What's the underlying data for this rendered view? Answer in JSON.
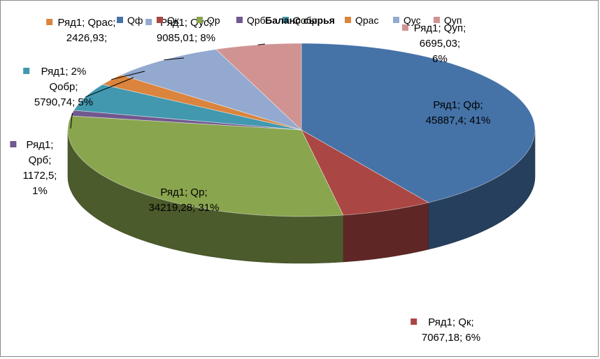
{
  "chart_data": {
    "type": "pie",
    "title": "Баланс сырья",
    "series_name": "Ряд1",
    "categories": [
      "Qф",
      "Qк",
      "Qр",
      "Qрб",
      "Qобр",
      "Qрас",
      "Qус",
      "Qуп"
    ],
    "values": [
      45887.4,
      7067.18,
      34219.28,
      1172.5,
      5790.74,
      2426.93,
      9085.01,
      6695.03
    ],
    "colors": [
      "#4572A7",
      "#AA4643",
      "#89A54E",
      "#71588F",
      "#4198AF",
      "#DB843D",
      "#93A9CF",
      "#D19392"
    ],
    "legend_position": "top",
    "data_labels": [
      [
        "Ряд1; Qф;",
        "45887,4; 41%"
      ],
      [
        "Ряд1; Qк;",
        "7067,18; 6%"
      ],
      [
        "Ряд1; Qр;",
        "34219,28; 31%"
      ],
      [
        "Ряд1;",
        "Qрб;",
        "1172,5;",
        "1%"
      ],
      [
        "Ряд1; 2%",
        "Qобр;",
        "5790,74; 5%"
      ],
      [
        "Ряд1; Qрас;",
        "2426,93;"
      ],
      [
        "Ряд1; Qус;",
        "9085,01; 8%"
      ],
      [
        "Ряд1; Qуп;",
        "6695,03;",
        "6%"
      ]
    ]
  }
}
